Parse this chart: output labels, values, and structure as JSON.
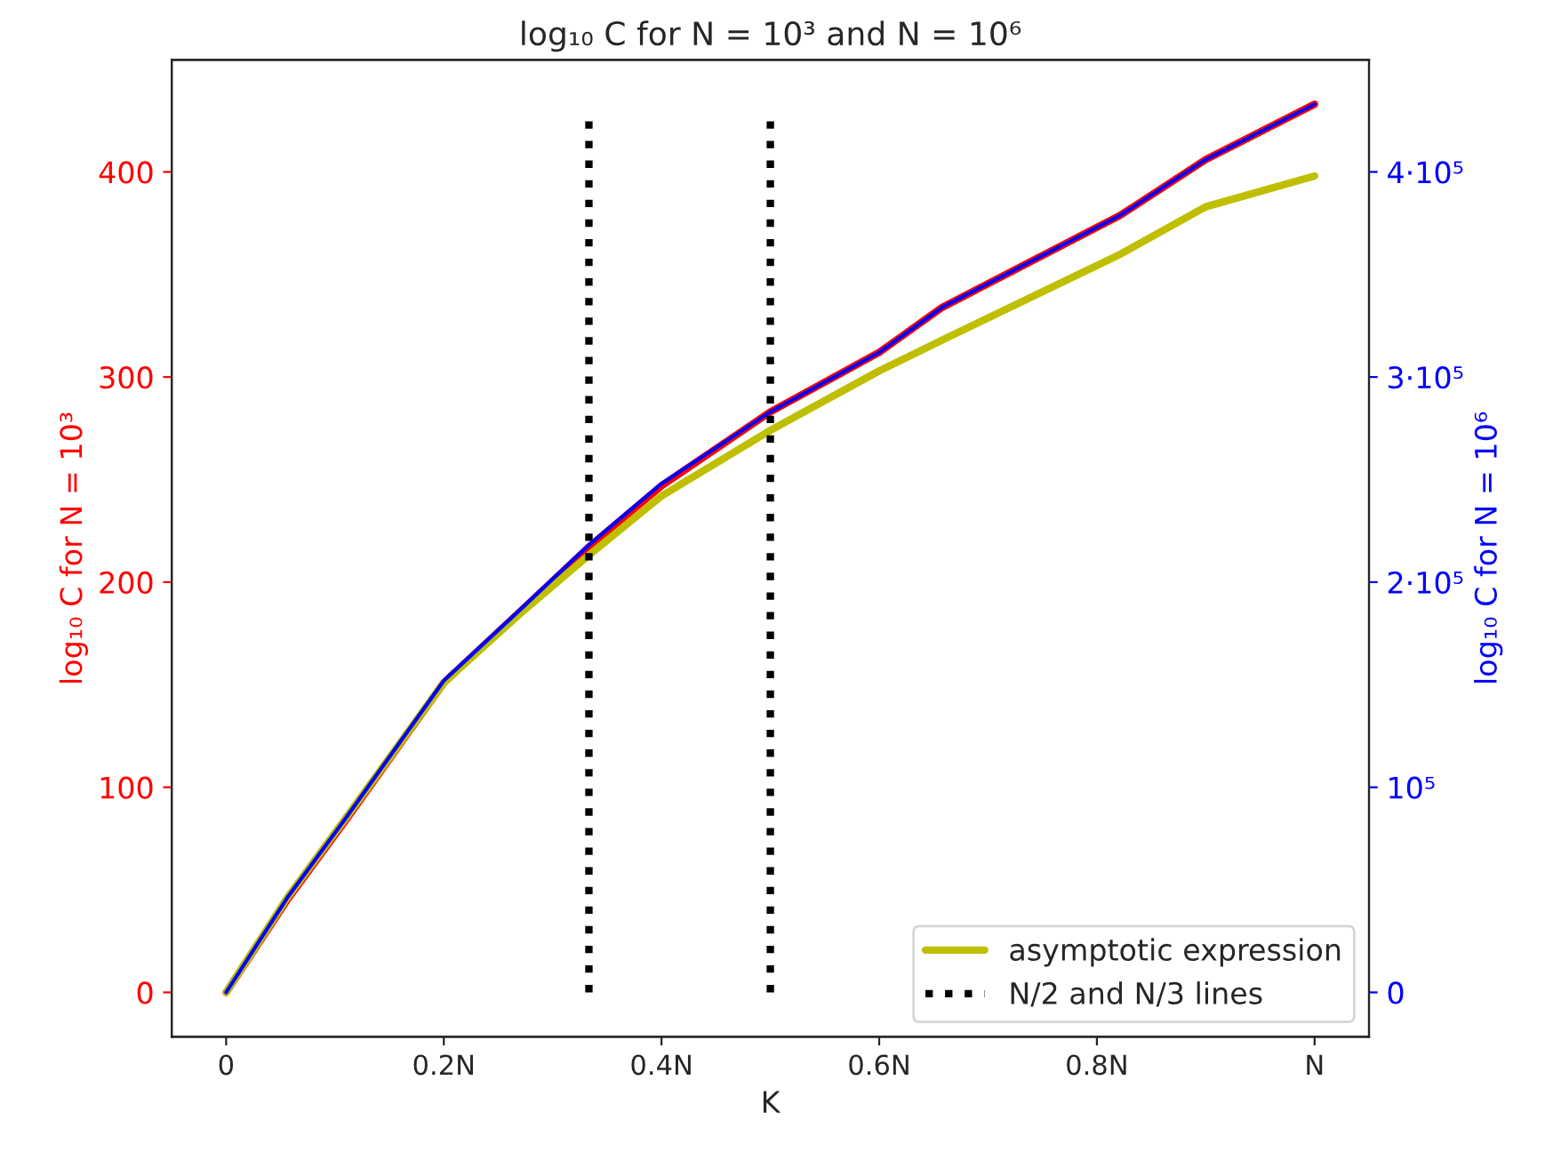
{
  "chart_data": {
    "type": "line",
    "title": "log₁₀ C for N = 10³ and N = 10⁶",
    "xlabel": "K",
    "ylabel": "log₁₀ C for N = 10³",
    "y2label": "log₁₀ C for N = 10⁶",
    "xlim": [
      -0.05,
      1.05
    ],
    "xticks": [
      0,
      {
        "value": 0.2,
        "label": "0.2N"
      },
      {
        "value": 0.4,
        "label": "0.4N"
      },
      {
        "value": 0.6,
        "label": "0.6N"
      },
      {
        "value": 0.8,
        "label": "0.8N"
      },
      {
        "value": 1,
        "label": "N"
      }
    ],
    "ylim": [
      -21.65,
      454.6
    ],
    "yticks": [
      0,
      100,
      200,
      300,
      400
    ],
    "y2lim": [
      -21650,
      454600
    ],
    "y2ticks": [
      0,
      {
        "value": 100000,
        "label": "10⁵"
      },
      {
        "value": 200000,
        "label": "2·10⁵"
      },
      {
        "value": 300000,
        "label": "3·10⁵"
      },
      {
        "value": 400000,
        "label": "4·10⁵"
      }
    ],
    "legend": "bottom right",
    "grid": false,
    "series": [
      {
        "color": "#ff0000",
        "x": [
          0,
          0.056,
          0.11,
          0.2,
          0.273,
          0.333,
          0.4,
          0.5,
          0.6,
          0.658,
          0.822,
          0.9,
          1
        ],
        "values": [
          0,
          45,
          84,
          151,
          187,
          217,
          247,
          283,
          312,
          334,
          379,
          406,
          433
        ]
      },
      {
        "color": "#0000ff",
        "axis": "y2",
        "x": [
          0,
          0.056,
          0.11,
          0.2,
          0.273,
          0.333,
          0.4,
          0.5,
          0.6,
          0.658,
          0.822,
          0.9,
          1
        ],
        "values": [
          0,
          46000,
          85000,
          152000,
          188000,
          218000,
          248000,
          283000,
          312000,
          334000,
          379000,
          406000,
          433000
        ]
      },
      {
        "name": "asymptotic expression",
        "color": "#bfbf00",
        "x": [
          0,
          0.056,
          0.11,
          0.2,
          0.273,
          0.333,
          0.4,
          0.5,
          0.6,
          0.658,
          0.822,
          0.9,
          1
        ],
        "values": [
          0,
          46,
          85,
          151,
          186,
          213,
          242,
          274,
          303,
          318,
          360,
          383,
          398
        ]
      },
      {
        "name": "N/2 and N/3 lines",
        "color": "#000000",
        "line_style": "dotted",
        "x": [
          0.3333,
          0.3333,
          0.4,
          0.5,
          0.5
        ],
        "values": [
          0,
          428,
          null,
          0,
          428
        ]
      }
    ]
  }
}
